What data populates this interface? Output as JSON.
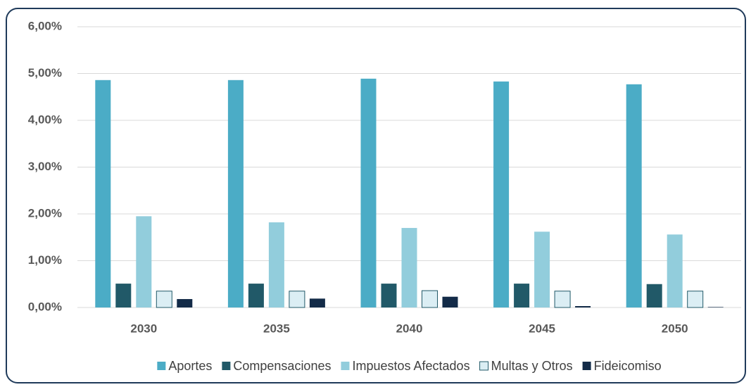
{
  "chart_data": {
    "type": "bar",
    "categories": [
      "2030",
      "2035",
      "2040",
      "2045",
      "2050"
    ],
    "series": [
      {
        "name": "Aportes",
        "color": "#4bacc6",
        "values": [
          4.86,
          4.86,
          4.89,
          4.83,
          4.77
        ]
      },
      {
        "name": "Compensaciones",
        "color": "#215968",
        "values": [
          0.51,
          0.51,
          0.51,
          0.51,
          0.5
        ]
      },
      {
        "name": "Impuestos Afectados",
        "color": "#92cddc",
        "values": [
          1.95,
          1.82,
          1.7,
          1.62,
          1.56
        ]
      },
      {
        "name": "Multas y Otros",
        "color": "#dbeef4",
        "values": [
          0.35,
          0.35,
          0.36,
          0.35,
          0.35
        ]
      },
      {
        "name": "Fideicomiso",
        "color": "#132b48",
        "values": [
          0.18,
          0.19,
          0.23,
          0.03,
          0.01
        ]
      }
    ],
    "ylim": [
      0,
      6
    ],
    "yticks": [
      {
        "value": 0,
        "label": "0,00%"
      },
      {
        "value": 1,
        "label": "1,00%"
      },
      {
        "value": 2,
        "label": "2,00%"
      },
      {
        "value": 3,
        "label": "3,00%"
      },
      {
        "value": 4,
        "label": "4,00%"
      },
      {
        "value": 5,
        "label": "5,00%"
      },
      {
        "value": 6,
        "label": "6,00%"
      }
    ],
    "grid": true,
    "legend": "bottom"
  }
}
